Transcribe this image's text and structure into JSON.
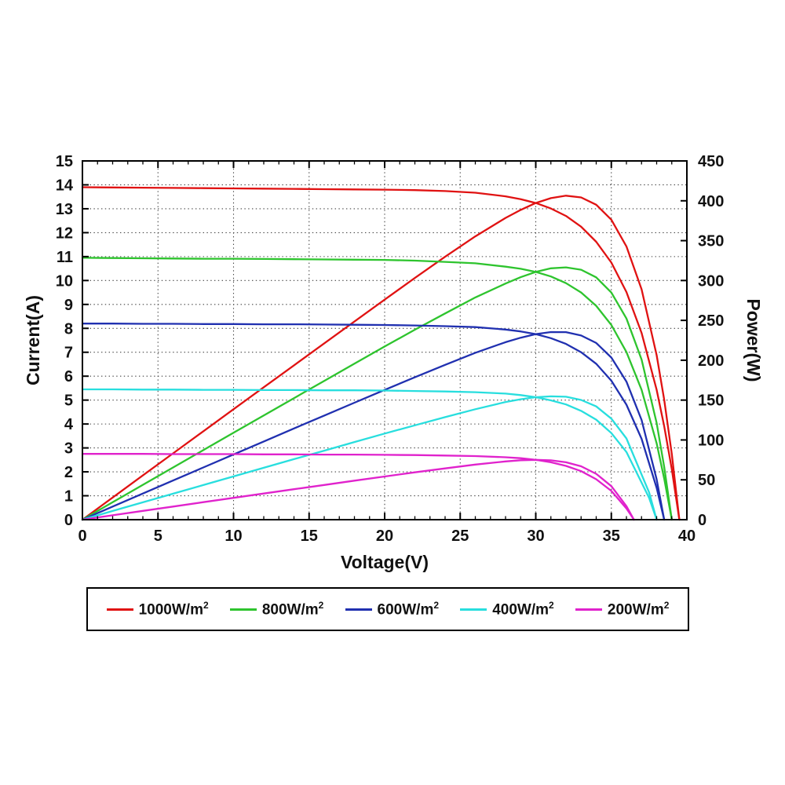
{
  "page": {
    "background": "#ffffff"
  },
  "chart_data": {
    "type": "line",
    "title": "",
    "xlabel": "Voltage(V)",
    "ylabel_left": "Current(A)",
    "ylabel_right": "Power(W)",
    "xlim": [
      0,
      40
    ],
    "ylim_left": [
      0,
      15
    ],
    "ylim_right": [
      0,
      450
    ],
    "xtick_step": 5,
    "xminor_step": 1,
    "ytick_step_left": 1,
    "ytick_step_right": 50,
    "grid": "dotted",
    "legend_position": "bottom",
    "curves_per_series": [
      "I-V: current vs voltage on left axis",
      "P-V: power = V*I on right axis"
    ],
    "series": [
      {
        "name": "1000W/m²",
        "color": "#e01212",
        "isc_a": 13.9,
        "voc_v": 39.5,
        "peak_power_w": 406,
        "iv_points": [
          [
            0,
            13.9
          ],
          [
            2,
            13.89
          ],
          [
            4,
            13.88
          ],
          [
            6,
            13.87
          ],
          [
            8,
            13.86
          ],
          [
            10,
            13.85
          ],
          [
            12,
            13.84
          ],
          [
            14,
            13.83
          ],
          [
            16,
            13.82
          ],
          [
            18,
            13.81
          ],
          [
            20,
            13.8
          ],
          [
            22,
            13.78
          ],
          [
            24,
            13.74
          ],
          [
            26,
            13.67
          ],
          [
            28,
            13.52
          ],
          [
            29,
            13.4
          ],
          [
            30,
            13.24
          ],
          [
            31,
            13.01
          ],
          [
            32,
            12.7
          ],
          [
            33,
            12.25
          ],
          [
            34,
            11.62
          ],
          [
            35,
            10.75
          ],
          [
            36,
            9.52
          ],
          [
            37,
            7.81
          ],
          [
            38,
            5.43
          ],
          [
            38.5,
            3.91
          ],
          [
            39,
            2.11
          ],
          [
            39.5,
            0
          ]
        ]
      },
      {
        "name": "800W/m²",
        "color": "#2ec42e",
        "isc_a": 10.95,
        "voc_v": 39.0,
        "peak_power_w": 317,
        "iv_points": [
          [
            0,
            10.95
          ],
          [
            2,
            10.94
          ],
          [
            4,
            10.93
          ],
          [
            6,
            10.92
          ],
          [
            8,
            10.91
          ],
          [
            10,
            10.91
          ],
          [
            12,
            10.9
          ],
          [
            14,
            10.89
          ],
          [
            16,
            10.88
          ],
          [
            18,
            10.87
          ],
          [
            20,
            10.86
          ],
          [
            22,
            10.83
          ],
          [
            24,
            10.78
          ],
          [
            26,
            10.72
          ],
          [
            28,
            10.58
          ],
          [
            29,
            10.49
          ],
          [
            30,
            10.36
          ],
          [
            31,
            10.17
          ],
          [
            32,
            9.89
          ],
          [
            33,
            9.5
          ],
          [
            34,
            8.94
          ],
          [
            35,
            8.14
          ],
          [
            36,
            7.01
          ],
          [
            37,
            5.43
          ],
          [
            38,
            3.19
          ],
          [
            38.5,
            1.72
          ],
          [
            39,
            0
          ]
        ]
      },
      {
        "name": "600W/m²",
        "color": "#2030b0",
        "isc_a": 8.2,
        "voc_v": 38.5,
        "peak_power_w": 237,
        "iv_points": [
          [
            0,
            8.2
          ],
          [
            2,
            8.2
          ],
          [
            4,
            8.19
          ],
          [
            6,
            8.19
          ],
          [
            8,
            8.18
          ],
          [
            10,
            8.18
          ],
          [
            12,
            8.17
          ],
          [
            14,
            8.17
          ],
          [
            16,
            8.16
          ],
          [
            18,
            8.15
          ],
          [
            20,
            8.14
          ],
          [
            22,
            8.12
          ],
          [
            24,
            8.09
          ],
          [
            26,
            8.05
          ],
          [
            28,
            7.95
          ],
          [
            29,
            7.87
          ],
          [
            30,
            7.76
          ],
          [
            31,
            7.59
          ],
          [
            32,
            7.35
          ],
          [
            33,
            7.0
          ],
          [
            34,
            6.52
          ],
          [
            35,
            5.81
          ],
          [
            36,
            4.81
          ],
          [
            37,
            3.38
          ],
          [
            38,
            1.33
          ],
          [
            38.5,
            0
          ]
        ]
      },
      {
        "name": "400W/m²",
        "color": "#28dede",
        "isc_a": 5.45,
        "voc_v": 38.0,
        "peak_power_w": 156,
        "iv_points": [
          [
            0,
            5.45
          ],
          [
            2,
            5.45
          ],
          [
            4,
            5.44
          ],
          [
            6,
            5.44
          ],
          [
            8,
            5.43
          ],
          [
            10,
            5.43
          ],
          [
            12,
            5.42
          ],
          [
            14,
            5.42
          ],
          [
            16,
            5.41
          ],
          [
            18,
            5.41
          ],
          [
            20,
            5.4
          ],
          [
            22,
            5.38
          ],
          [
            24,
            5.36
          ],
          [
            26,
            5.33
          ],
          [
            28,
            5.27
          ],
          [
            29,
            5.21
          ],
          [
            30,
            5.12
          ],
          [
            31,
            4.99
          ],
          [
            32,
            4.82
          ],
          [
            33,
            4.55
          ],
          [
            34,
            4.18
          ],
          [
            35,
            3.62
          ],
          [
            36,
            2.83
          ],
          [
            37.5,
            0.91
          ],
          [
            38,
            0
          ]
        ]
      },
      {
        "name": "200W/m²",
        "color": "#e022cc",
        "isc_a": 2.75,
        "voc_v": 36.5,
        "peak_power_w": 77,
        "iv_points": [
          [
            0,
            2.75
          ],
          [
            2,
            2.75
          ],
          [
            4,
            2.75
          ],
          [
            6,
            2.74
          ],
          [
            8,
            2.74
          ],
          [
            10,
            2.74
          ],
          [
            12,
            2.73
          ],
          [
            14,
            2.73
          ],
          [
            16,
            2.72
          ],
          [
            18,
            2.72
          ],
          [
            20,
            2.71
          ],
          [
            22,
            2.7
          ],
          [
            24,
            2.68
          ],
          [
            26,
            2.66
          ],
          [
            28,
            2.61
          ],
          [
            29,
            2.57
          ],
          [
            30,
            2.5
          ],
          [
            31,
            2.4
          ],
          [
            32,
            2.25
          ],
          [
            33,
            2.03
          ],
          [
            34,
            1.69
          ],
          [
            35,
            1.2
          ],
          [
            36,
            0.47
          ],
          [
            36.5,
            0
          ]
        ]
      }
    ]
  }
}
